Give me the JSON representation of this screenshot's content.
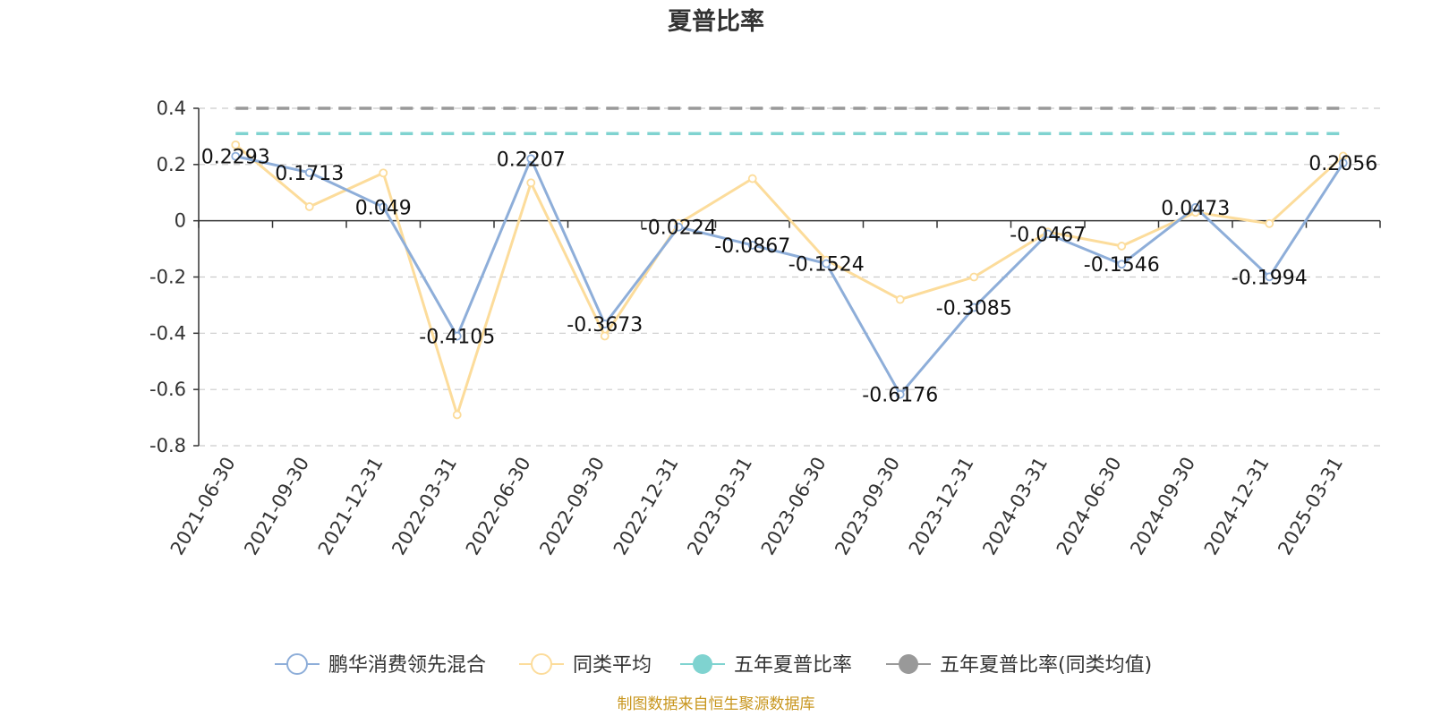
{
  "chart_data": {
    "type": "line",
    "title": "夏普比率",
    "categories": [
      "2021-06-30",
      "2021-09-30",
      "2021-12-31",
      "2022-03-31",
      "2022-06-30",
      "2022-09-30",
      "2022-12-31",
      "2023-03-31",
      "2023-06-30",
      "2023-09-30",
      "2023-12-31",
      "2024-03-31",
      "2024-06-30",
      "2024-09-30",
      "2024-12-31",
      "2025-03-31"
    ],
    "ylim": [
      -0.8,
      0.4
    ],
    "yticks": [
      0.4,
      0.2,
      0,
      -0.2,
      -0.4,
      -0.6,
      -0.8
    ],
    "grid": true,
    "legend_position": "bottom",
    "series": [
      {
        "name": "鹏华消费领先混合",
        "color": "#8eaed9",
        "marker": "hollow-circle",
        "values": [
          0.2293,
          0.1713,
          0.049,
          -0.4105,
          0.2207,
          -0.3673,
          -0.0224,
          -0.0867,
          -0.1524,
          -0.6176,
          -0.3085,
          -0.0467,
          -0.1546,
          0.0473,
          -0.1994,
          0.2056
        ],
        "labels": [
          "0.2293",
          "0.1713",
          "0.049",
          "-0.4105",
          "0.2207",
          "-0.3673",
          "-0.0224",
          "-0.0867",
          "-0.1524",
          "-0.6176",
          "-0.3085",
          "-0.0467",
          "-0.1546",
          "0.0473",
          "-0.1994",
          "0.2056"
        ]
      },
      {
        "name": "同类平均",
        "color": "#fcdc9b",
        "marker": "hollow-circle",
        "values": [
          0.27,
          0.05,
          0.17,
          -0.69,
          0.135,
          -0.41,
          -0.01,
          0.15,
          -0.14,
          -0.28,
          -0.2,
          -0.04,
          -0.09,
          0.03,
          -0.01,
          0.23
        ]
      },
      {
        "name": "五年夏普比率",
        "color": "#7fd3d0",
        "marker": "filled-circle",
        "style": "dashed",
        "values": [
          0.31,
          0.31,
          0.31,
          0.31,
          0.31,
          0.31,
          0.31,
          0.31,
          0.31,
          0.31,
          0.31,
          0.31,
          0.31,
          0.31,
          0.31,
          0.31
        ]
      },
      {
        "name": "五年夏普比率(同类均值)",
        "color": "#999999",
        "marker": "filled-circle",
        "style": "dashed",
        "values": [
          0.4,
          0.4,
          0.4,
          0.4,
          0.4,
          0.4,
          0.4,
          0.4,
          0.4,
          0.4,
          0.4,
          0.4,
          0.4,
          0.4,
          0.4,
          0.4
        ]
      }
    ],
    "source": "制图数据来自恒生聚源数据库"
  }
}
